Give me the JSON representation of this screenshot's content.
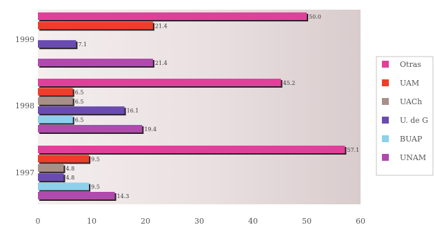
{
  "chart_data": {
    "type": "bar",
    "orientation": "horizontal",
    "title": "",
    "xlabel": "",
    "ylabel": "",
    "xlim": [
      0,
      60
    ],
    "x_ticks": [
      0,
      10,
      20,
      30,
      40,
      50,
      60
    ],
    "grid": false,
    "legend_position": "right",
    "categories": [
      "1999",
      "1998",
      "1997"
    ],
    "series": [
      {
        "name": "Otras",
        "color": "#e0409a",
        "values": [
          50.0,
          45.2,
          57.1
        ],
        "labels": [
          "50.0",
          "45.2",
          "57.1"
        ]
      },
      {
        "name": "UAM",
        "color": "#ee3d2a",
        "values": [
          21.4,
          6.5,
          9.5
        ],
        "labels": [
          "21.4",
          "6.5",
          "9.5"
        ]
      },
      {
        "name": "UACh",
        "color": "#a89088",
        "values": [
          null,
          6.5,
          4.8
        ],
        "labels": [
          null,
          "6.5",
          "4.8"
        ]
      },
      {
        "name": "U. de G",
        "color": "#6a4bb0",
        "values": [
          7.1,
          16.1,
          4.8
        ],
        "labels": [
          "7.1",
          "16.1",
          "4.8"
        ]
      },
      {
        "name": "BUAP",
        "color": "#8ed0ec",
        "values": [
          null,
          6.5,
          9.5
        ],
        "labels": [
          null,
          "6.5",
          "9.5"
        ]
      },
      {
        "name": "UNAM",
        "color": "#b04aac",
        "values": [
          21.4,
          19.4,
          14.3
        ],
        "labels": [
          "21.4",
          "19.4",
          "14.3"
        ]
      }
    ]
  }
}
